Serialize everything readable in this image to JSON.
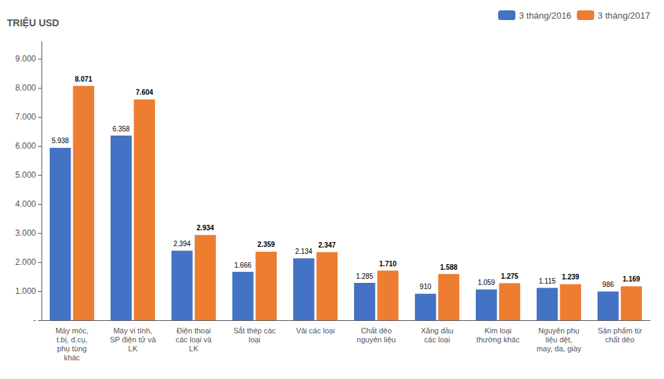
{
  "chart_data": {
    "type": "bar",
    "ylabel": "TRIỆU USD",
    "categories": [
      "Máy móc,\nt.bị, d.cụ,\nphụ tùng\nkhác",
      "Máy vi tính,\nSP điện tử và\nLK",
      "Điện thoại\ncác loại và\nLK",
      "Sắt thép các\nloại",
      "Vải các loại",
      "Chất dẻo\nnguyên liệu",
      "Xăng dầu\ncác loại",
      "Kim loại\nthường khác",
      "Nguyên phụ\nliệu dệt,\nmay, da, giày",
      "Sản phẩm từ\nchất dẻo"
    ],
    "series": [
      {
        "name": "3 tháng/2016",
        "color": "#4472C4",
        "values": [
          5938,
          6358,
          2394,
          1666,
          2134,
          1285,
          910,
          1059,
          1115,
          986
        ],
        "value_labels": [
          "5.938",
          "6.358",
          "2.394",
          "1.666",
          "2.134",
          "1.285",
          "910",
          "1.059",
          "1.115",
          "986"
        ]
      },
      {
        "name": "3 tháng/2017",
        "color": "#ED7D31",
        "values": [
          8071,
          7604,
          2934,
          2359,
          2347,
          1710,
          1588,
          1275,
          1239,
          1169
        ],
        "value_labels": [
          "8.071",
          "7.604",
          "2.934",
          "2.359",
          "2.347",
          "1.710",
          "1.588",
          "1.275",
          "1.239",
          "1.169"
        ]
      }
    ],
    "ylim": [
      0,
      9600
    ],
    "yticks": [
      {
        "value": 0,
        "label": "-"
      },
      {
        "value": 1000,
        "label": "1.000"
      },
      {
        "value": 2000,
        "label": "2.000"
      },
      {
        "value": 3000,
        "label": "3.000"
      },
      {
        "value": 4000,
        "label": "4.000"
      },
      {
        "value": 5000,
        "label": "5.000"
      },
      {
        "value": 6000,
        "label": "6.000"
      },
      {
        "value": 7000,
        "label": "7.000"
      },
      {
        "value": 8000,
        "label": "8.000"
      },
      {
        "value": 9000,
        "label": "9.000"
      }
    ],
    "data_labels": true,
    "legend": "upper right",
    "grid": false
  }
}
